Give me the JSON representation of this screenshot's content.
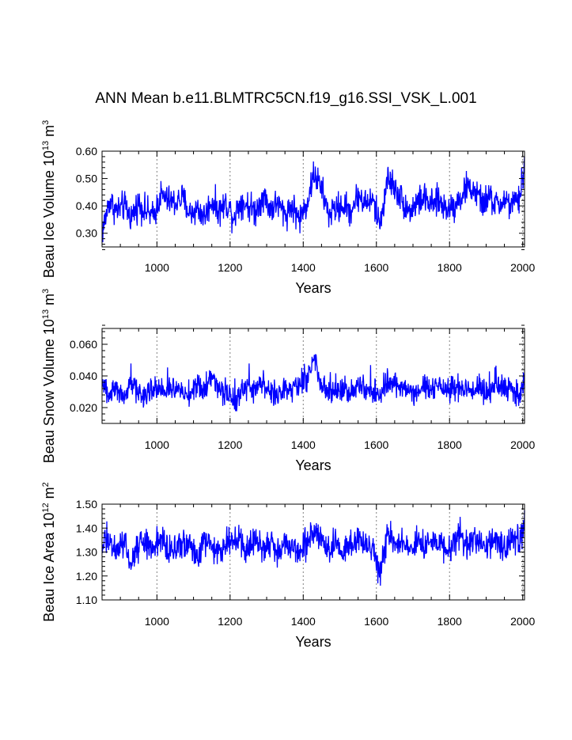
{
  "title": "ANN Mean b.e11.BLMTRC5CN.f19_g16.SSI_VSK_L.001",
  "colors": {
    "series": "#0000ff",
    "axis": "#000000",
    "grid": "#808080"
  },
  "chart_data": [
    {
      "type": "line",
      "title": "ANN Mean b.e11.BLMTRC5CN.f19_g16.SSI_VSK_L.001",
      "xlabel": "Years",
      "ylabel": "Beau Ice Volume 10¹³ m³",
      "ylabel_parts": {
        "text": "Beau Ice Volume 10",
        "exp": "13",
        "unit": " m",
        "unit_exp": "3"
      },
      "xlim": [
        850,
        2005
      ],
      "ylim": [
        0.25,
        0.6
      ],
      "xticks": [
        1000,
        1200,
        1400,
        1600,
        1800,
        2000
      ],
      "xtick_labels": [
        "1000",
        "1200",
        "1400",
        "1600",
        "1800",
        "2000"
      ],
      "yticks": [
        0.3,
        0.4,
        0.5,
        0.6
      ],
      "ytick_labels": [
        "0.30",
        "0.40",
        "0.50",
        "0.60"
      ],
      "grid": "vertical dashed at major x ticks",
      "series": [
        {
          "x": [
            850,
            870,
            890,
            910,
            930,
            950,
            970,
            990,
            1010,
            1030,
            1050,
            1070,
            1090,
            1110,
            1130,
            1150,
            1170,
            1190,
            1210,
            1230,
            1250,
            1270,
            1290,
            1310,
            1330,
            1350,
            1370,
            1390,
            1410,
            1430,
            1450,
            1470,
            1490,
            1510,
            1530,
            1550,
            1570,
            1590,
            1610,
            1630,
            1650,
            1670,
            1690,
            1710,
            1730,
            1750,
            1770,
            1790,
            1810,
            1830,
            1850,
            1870,
            1890,
            1910,
            1930,
            1950,
            1970,
            1990,
            2005
          ],
          "values": [
            0.3,
            0.42,
            0.38,
            0.4,
            0.36,
            0.41,
            0.38,
            0.36,
            0.44,
            0.42,
            0.41,
            0.43,
            0.37,
            0.39,
            0.36,
            0.42,
            0.38,
            0.41,
            0.36,
            0.42,
            0.4,
            0.38,
            0.44,
            0.39,
            0.41,
            0.37,
            0.4,
            0.35,
            0.41,
            0.52,
            0.46,
            0.37,
            0.39,
            0.4,
            0.38,
            0.44,
            0.41,
            0.42,
            0.33,
            0.5,
            0.47,
            0.42,
            0.38,
            0.41,
            0.43,
            0.4,
            0.42,
            0.39,
            0.4,
            0.43,
            0.47,
            0.45,
            0.41,
            0.43,
            0.4,
            0.42,
            0.4,
            0.42,
            0.55
          ]
        }
      ]
    },
    {
      "type": "line",
      "xlabel": "Years",
      "ylabel": "Beau Snow Volume 10¹³ m³",
      "ylabel_parts": {
        "text": "Beau Snow Volume 10",
        "exp": "13",
        "unit": " m",
        "unit_exp": "3"
      },
      "xlim": [
        850,
        2005
      ],
      "ylim": [
        0.01,
        0.07
      ],
      "xticks": [
        1000,
        1200,
        1400,
        1600,
        1800,
        2000
      ],
      "xtick_labels": [
        "1000",
        "1200",
        "1400",
        "1600",
        "1800",
        "2000"
      ],
      "yticks": [
        0.02,
        0.04,
        0.06
      ],
      "ytick_labels": [
        "0.020",
        "0.040",
        "0.060"
      ],
      "grid": "vertical dashed at major x ticks",
      "series": [
        {
          "x": [
            850,
            870,
            890,
            910,
            930,
            950,
            970,
            990,
            1010,
            1030,
            1050,
            1070,
            1090,
            1110,
            1130,
            1150,
            1170,
            1190,
            1210,
            1230,
            1250,
            1270,
            1290,
            1310,
            1330,
            1350,
            1370,
            1390,
            1410,
            1430,
            1450,
            1470,
            1490,
            1510,
            1530,
            1550,
            1570,
            1590,
            1610,
            1630,
            1650,
            1670,
            1690,
            1710,
            1730,
            1750,
            1770,
            1790,
            1810,
            1830,
            1850,
            1870,
            1890,
            1910,
            1930,
            1950,
            1970,
            1990,
            2005
          ],
          "values": [
            0.035,
            0.028,
            0.032,
            0.026,
            0.034,
            0.03,
            0.027,
            0.033,
            0.031,
            0.029,
            0.034,
            0.03,
            0.028,
            0.035,
            0.031,
            0.04,
            0.033,
            0.029,
            0.024,
            0.03,
            0.034,
            0.029,
            0.036,
            0.031,
            0.028,
            0.033,
            0.03,
            0.032,
            0.038,
            0.05,
            0.034,
            0.028,
            0.03,
            0.032,
            0.029,
            0.033,
            0.031,
            0.03,
            0.026,
            0.036,
            0.034,
            0.032,
            0.03,
            0.027,
            0.033,
            0.031,
            0.034,
            0.03,
            0.031,
            0.033,
            0.032,
            0.03,
            0.033,
            0.029,
            0.035,
            0.031,
            0.03,
            0.029,
            0.036
          ]
        }
      ]
    },
    {
      "type": "line",
      "xlabel": "Years",
      "ylabel": "Beau Ice Area 10¹² m²",
      "ylabel_parts": {
        "text": "Beau Ice Area 10",
        "exp": "12",
        "unit": " m",
        "unit_exp": "2"
      },
      "xlim": [
        850,
        2005
      ],
      "ylim": [
        1.1,
        1.5
      ],
      "xticks": [
        1000,
        1200,
        1400,
        1600,
        1800,
        2000
      ],
      "xtick_labels": [
        "1000",
        "1200",
        "1400",
        "1600",
        "1800",
        "2000"
      ],
      "yticks": [
        1.1,
        1.2,
        1.3,
        1.4,
        1.5
      ],
      "ytick_labels": [
        "1.10",
        "1.20",
        "1.30",
        "1.40",
        "1.50"
      ],
      "grid": "vertical dashed at major x ticks",
      "series": [
        {
          "x": [
            850,
            870,
            890,
            910,
            930,
            950,
            970,
            990,
            1010,
            1030,
            1050,
            1070,
            1090,
            1110,
            1130,
            1150,
            1170,
            1190,
            1210,
            1230,
            1250,
            1270,
            1290,
            1310,
            1330,
            1350,
            1370,
            1390,
            1410,
            1430,
            1450,
            1470,
            1490,
            1510,
            1530,
            1550,
            1570,
            1590,
            1610,
            1630,
            1650,
            1670,
            1690,
            1710,
            1730,
            1750,
            1770,
            1790,
            1810,
            1830,
            1850,
            1870,
            1890,
            1910,
            1930,
            1950,
            1970,
            1990,
            2005
          ],
          "values": [
            1.33,
            1.36,
            1.3,
            1.34,
            1.25,
            1.33,
            1.35,
            1.31,
            1.36,
            1.33,
            1.3,
            1.35,
            1.32,
            1.28,
            1.35,
            1.33,
            1.3,
            1.36,
            1.33,
            1.34,
            1.31,
            1.36,
            1.33,
            1.35,
            1.3,
            1.34,
            1.32,
            1.3,
            1.35,
            1.4,
            1.36,
            1.3,
            1.33,
            1.31,
            1.34,
            1.36,
            1.33,
            1.3,
            1.22,
            1.38,
            1.35,
            1.33,
            1.31,
            1.34,
            1.32,
            1.35,
            1.33,
            1.31,
            1.34,
            1.36,
            1.33,
            1.35,
            1.33,
            1.34,
            1.36,
            1.32,
            1.35,
            1.33,
            1.42
          ]
        }
      ]
    }
  ]
}
